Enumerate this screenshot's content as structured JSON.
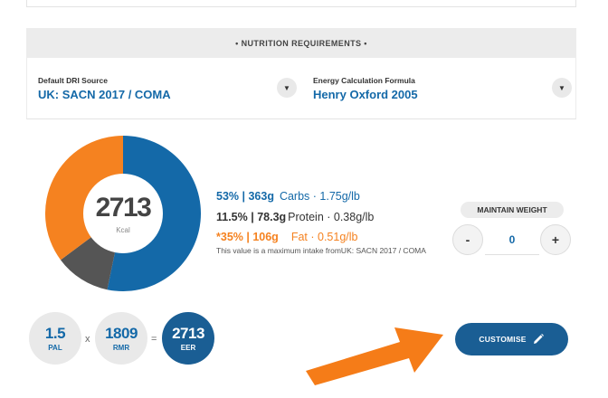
{
  "section": {
    "title": "• NUTRITION REQUIREMENTS •"
  },
  "dri": {
    "label": "Default DRI Source",
    "value": "UK: SACN 2017 / COMA"
  },
  "energy": {
    "label": "Energy Calculation Formula",
    "value": "Henry Oxford 2005"
  },
  "calories": {
    "value": "2713",
    "unit": "Kcal"
  },
  "chart_data": {
    "type": "pie",
    "categories": [
      "Carbs",
      "Protein",
      "Fat"
    ],
    "values": [
      53,
      11.5,
      35
    ],
    "colors": [
      "#1469a8",
      "#555555",
      "#f58220"
    ]
  },
  "macros": {
    "carbs": {
      "amount": "53% | 363g",
      "detail": "Carbs · 1.75g/lb"
    },
    "protein": {
      "amount": "11.5% | 78.3g",
      "detail": "Protein · 0.38g/lb"
    },
    "fat": {
      "amount": "*35% | 106g",
      "detail": "Fat · 0.51g/lb"
    },
    "note": "This value is a maximum intake fromUK: SACN 2017 / COMA"
  },
  "weight": {
    "label": "MAINTAIN WEIGHT",
    "value": "0",
    "minus": "-",
    "plus": "+"
  },
  "equation": {
    "pal": {
      "value": "1.5",
      "label": "PAL"
    },
    "times": "x",
    "rmr": {
      "value": "1809",
      "label": "RMR"
    },
    "equals": "=",
    "eer": {
      "value": "2713",
      "label": "EER"
    }
  },
  "customise": {
    "label": "CUSTOMISE",
    "icon": "pencil-icon"
  },
  "colors": {
    "accent": "#1469a8",
    "dark_blue": "#1a5e94",
    "orange": "#f58220",
    "protein": "#555555"
  }
}
